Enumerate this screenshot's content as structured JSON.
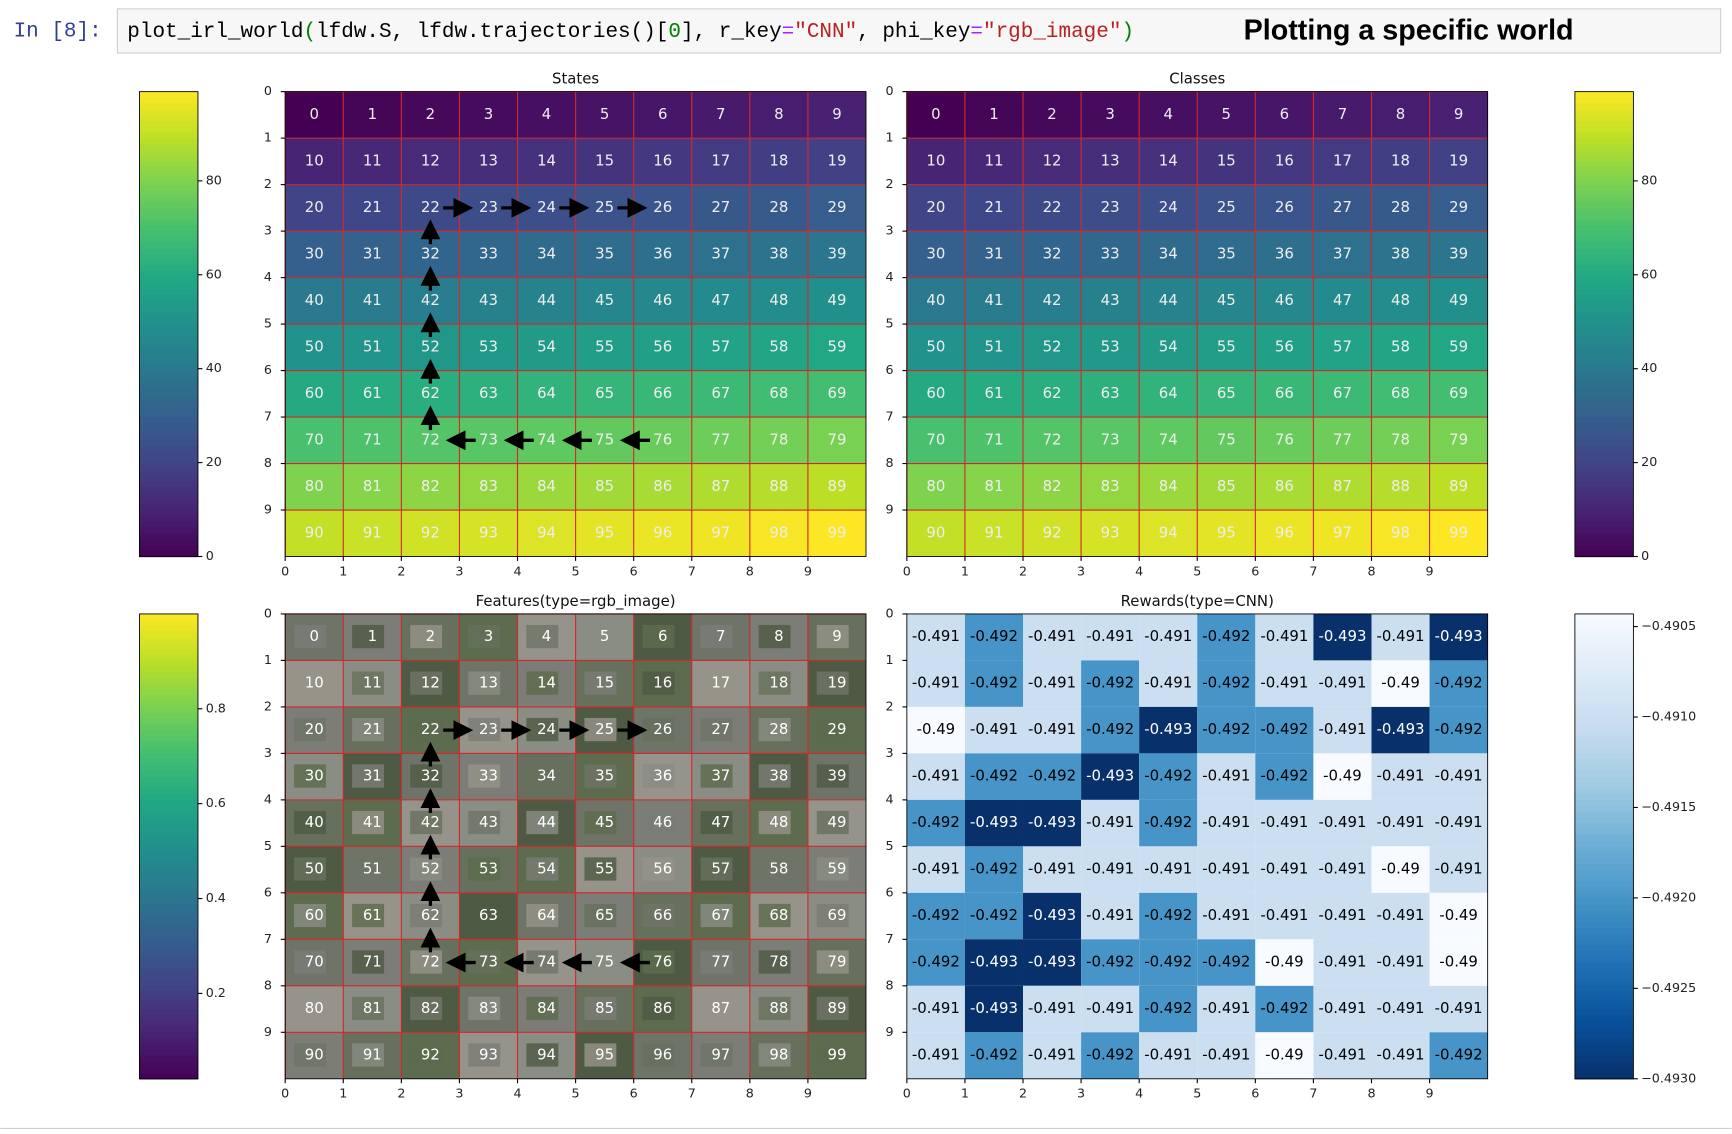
{
  "cell": {
    "prompt": "In [8]:",
    "code": [
      {
        "text": "plot_irl_world",
        "color": "#000000"
      },
      {
        "text": "(",
        "color": "#008000"
      },
      {
        "text": "lfdw.S, lfdw.trajectories()[",
        "color": "#000000"
      },
      {
        "text": "0",
        "color": "#008000"
      },
      {
        "text": "], r_key",
        "color": "#000000"
      },
      {
        "text": "=",
        "color": "#aa22ff"
      },
      {
        "text": "\"CNN\"",
        "color": "#ba2121"
      },
      {
        "text": ", phi_key",
        "color": "#000000"
      },
      {
        "text": "=",
        "color": "#aa22ff"
      },
      {
        "text": "\"rgb_image\"",
        "color": "#ba2121"
      },
      {
        "text": ")",
        "color": "#008000"
      }
    ],
    "note": "Plotting a specific world"
  },
  "trajectory": [
    76,
    75,
    74,
    73,
    72,
    62,
    52,
    42,
    32,
    22,
    23,
    24,
    25,
    26
  ],
  "panels": [
    {
      "kind": "heatmap",
      "title": "States",
      "cmap": "viridis",
      "grid_color": "#d62728",
      "show_trajectory": true,
      "values": [
        0,
        1,
        2,
        3,
        4,
        5,
        6,
        7,
        8,
        9,
        10,
        11,
        12,
        13,
        14,
        15,
        16,
        17,
        18,
        19,
        20,
        21,
        22,
        23,
        24,
        25,
        26,
        27,
        28,
        29,
        30,
        31,
        32,
        33,
        34,
        35,
        36,
        37,
        38,
        39,
        40,
        41,
        42,
        43,
        44,
        45,
        46,
        47,
        48,
        49,
        50,
        51,
        52,
        53,
        54,
        55,
        56,
        57,
        58,
        59,
        60,
        61,
        62,
        63,
        64,
        65,
        66,
        67,
        68,
        69,
        70,
        71,
        72,
        73,
        74,
        75,
        76,
        77,
        78,
        79,
        80,
        81,
        82,
        83,
        84,
        85,
        86,
        87,
        88,
        89,
        90,
        91,
        92,
        93,
        94,
        95,
        96,
        97,
        98,
        99
      ],
      "xlim": [
        0,
        10
      ],
      "ylim": [
        10,
        0
      ],
      "xticks": [
        0,
        1,
        2,
        3,
        4,
        5,
        6,
        7,
        8,
        9
      ],
      "yticks": [
        0,
        1,
        2,
        3,
        4,
        5,
        6,
        7,
        8,
        9
      ],
      "colorbar": {
        "side": "left",
        "lim": [
          0,
          99
        ],
        "ticks": [
          0,
          20,
          40,
          60,
          80
        ]
      }
    },
    {
      "kind": "heatmap",
      "title": "Classes",
      "cmap": "viridis",
      "grid_color": "#d62728",
      "show_trajectory": false,
      "values": [
        0,
        1,
        2,
        3,
        4,
        5,
        6,
        7,
        8,
        9,
        10,
        11,
        12,
        13,
        14,
        15,
        16,
        17,
        18,
        19,
        20,
        21,
        22,
        23,
        24,
        25,
        26,
        27,
        28,
        29,
        30,
        31,
        32,
        33,
        34,
        35,
        36,
        37,
        38,
        39,
        40,
        41,
        42,
        43,
        44,
        45,
        46,
        47,
        48,
        49,
        50,
        51,
        52,
        53,
        54,
        55,
        56,
        57,
        58,
        59,
        60,
        61,
        62,
        63,
        64,
        65,
        66,
        67,
        68,
        69,
        70,
        71,
        72,
        73,
        74,
        75,
        76,
        77,
        78,
        79,
        80,
        81,
        82,
        83,
        84,
        85,
        86,
        87,
        88,
        89,
        90,
        91,
        92,
        93,
        94,
        95,
        96,
        97,
        98,
        99
      ],
      "xlim": [
        0,
        10
      ],
      "ylim": [
        10,
        0
      ],
      "xticks": [
        0,
        1,
        2,
        3,
        4,
        5,
        6,
        7,
        8,
        9
      ],
      "yticks": [
        0,
        1,
        2,
        3,
        4,
        5,
        6,
        7,
        8,
        9
      ],
      "colorbar": {
        "side": "right",
        "lim": [
          0,
          99
        ],
        "ticks": [
          0,
          20,
          40,
          60,
          80
        ]
      }
    },
    {
      "kind": "image",
      "title": "Features(type=rgb_image)",
      "cmap": "viridis",
      "grid_color": "#d62728",
      "show_trajectory": true,
      "labels": [
        0,
        1,
        2,
        3,
        4,
        5,
        6,
        7,
        8,
        9,
        10,
        11,
        12,
        13,
        14,
        15,
        16,
        17,
        18,
        19,
        20,
        21,
        22,
        23,
        24,
        25,
        26,
        27,
        28,
        29,
        30,
        31,
        32,
        33,
        34,
        35,
        36,
        37,
        38,
        39,
        40,
        41,
        42,
        43,
        44,
        45,
        46,
        47,
        48,
        49,
        50,
        51,
        52,
        53,
        54,
        55,
        56,
        57,
        58,
        59,
        60,
        61,
        62,
        63,
        64,
        65,
        66,
        67,
        68,
        69,
        70,
        71,
        72,
        73,
        74,
        75,
        76,
        77,
        78,
        79,
        80,
        81,
        82,
        83,
        84,
        85,
        86,
        87,
        88,
        89,
        90,
        91,
        92,
        93,
        94,
        95,
        96,
        97,
        98,
        99
      ],
      "xlim": [
        0,
        10
      ],
      "ylim": [
        10,
        0
      ],
      "xticks": [
        0,
        1,
        2,
        3,
        4,
        5,
        6,
        7,
        8,
        9
      ],
      "yticks": [
        0,
        1,
        2,
        3,
        4,
        5,
        6,
        7,
        8,
        9
      ],
      "colorbar": {
        "side": "left",
        "lim": [
          0.02,
          1.0
        ],
        "ticks": [
          0.2,
          0.4,
          0.6,
          0.8
        ]
      }
    },
    {
      "kind": "heatmap",
      "title": "Rewards(type=CNN)",
      "cmap": "Blues_r",
      "grid_color": null,
      "show_trajectory": false,
      "values": [
        -0.491,
        -0.492,
        -0.491,
        -0.491,
        -0.491,
        -0.492,
        -0.491,
        -0.493,
        -0.491,
        -0.493,
        -0.491,
        -0.492,
        -0.491,
        -0.492,
        -0.491,
        -0.492,
        -0.491,
        -0.491,
        -0.49,
        -0.492,
        -0.49,
        -0.491,
        -0.491,
        -0.492,
        -0.493,
        -0.492,
        -0.492,
        -0.491,
        -0.493,
        -0.492,
        -0.491,
        -0.492,
        -0.492,
        -0.493,
        -0.492,
        -0.491,
        -0.492,
        -0.49,
        -0.491,
        -0.491,
        -0.492,
        -0.493,
        -0.493,
        -0.491,
        -0.492,
        -0.491,
        -0.491,
        -0.491,
        -0.491,
        -0.491,
        -0.491,
        -0.492,
        -0.491,
        -0.491,
        -0.491,
        -0.491,
        -0.491,
        -0.491,
        -0.49,
        -0.491,
        -0.492,
        -0.492,
        -0.493,
        -0.491,
        -0.492,
        -0.491,
        -0.491,
        -0.491,
        -0.491,
        -0.49,
        -0.492,
        -0.493,
        -0.493,
        -0.492,
        -0.492,
        -0.492,
        -0.49,
        -0.491,
        -0.491,
        -0.49,
        -0.491,
        -0.493,
        -0.491,
        -0.491,
        -0.492,
        -0.491,
        -0.492,
        -0.491,
        -0.491,
        -0.491,
        -0.491,
        -0.492,
        -0.491,
        -0.492,
        -0.491,
        -0.491,
        -0.49,
        -0.491,
        -0.491,
        -0.492
      ],
      "xlim": [
        0,
        10
      ],
      "ylim": [
        10,
        0
      ],
      "xticks": [
        0,
        1,
        2,
        3,
        4,
        5,
        6,
        7,
        8,
        9
      ],
      "yticks": [
        0,
        1,
        2,
        3,
        4,
        5,
        6,
        7,
        8,
        9
      ],
      "colorbar": {
        "side": "right",
        "lim": [
          -0.493,
          -0.49043
        ],
        "ticks": [
          {
            "value": -0.4905,
            "label": "−0.4905"
          },
          {
            "value": -0.491,
            "label": "−0.4910"
          },
          {
            "value": -0.4915,
            "label": "−0.4915"
          },
          {
            "value": -0.492,
            "label": "−0.4920"
          },
          {
            "value": -0.4925,
            "label": "−0.4925"
          },
          {
            "value": -0.493,
            "label": "−0.4930"
          }
        ]
      }
    }
  ]
}
